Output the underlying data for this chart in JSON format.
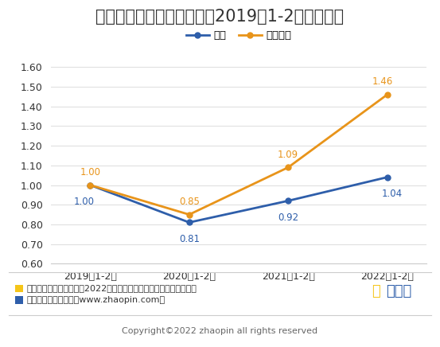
{
  "title": "上市公司招聘规模走势（以2019年1-2月为基数）",
  "x_labels": [
    "2019年1-2月",
    "2020年1-2月",
    "2021年1-2月",
    "2022年1-2月"
  ],
  "series_total": {
    "name": "总体",
    "values": [
      1.0,
      0.81,
      0.92,
      1.04
    ],
    "color": "#2E5EAA",
    "marker": "o"
  },
  "series_listed": {
    "name": "上市公司",
    "values": [
      1.0,
      0.85,
      1.09,
      1.46
    ],
    "color": "#E8941A",
    "marker": "o"
  },
  "ylim": [
    0.6,
    1.65
  ],
  "yticks": [
    0.6,
    0.7,
    0.8,
    0.9,
    1.0,
    1.1,
    1.2,
    1.3,
    1.4,
    1.5,
    1.6
  ],
  "bg_color": "#FFFFFF",
  "plot_bg_color": "#FFFFFF",
  "footnote_line1_icon_color": "#F5C518",
  "footnote_line1_text": "统计规则：基于智联招聘2022年在线招聘数据库的数据监测统计分析",
  "footnote_line2_icon_color": "#2E5EAA",
  "footnote_line2_text": "数据来源：智联招聘（www.zhaopin.com）",
  "copyright_text": "Copyright©2022 zhaopin all rights reserved",
  "brand_text_zhi": "智",
  "brand_text_rest": "联招聘",
  "brand_color_zhi": "#F5C518",
  "brand_color_rest": "#2E5EAA",
  "grid_color": "#E0E0E0",
  "font_size_title": 15,
  "font_size_labels": 9,
  "font_size_data": 8.5,
  "font_size_footnote": 8,
  "line_width": 2.0
}
